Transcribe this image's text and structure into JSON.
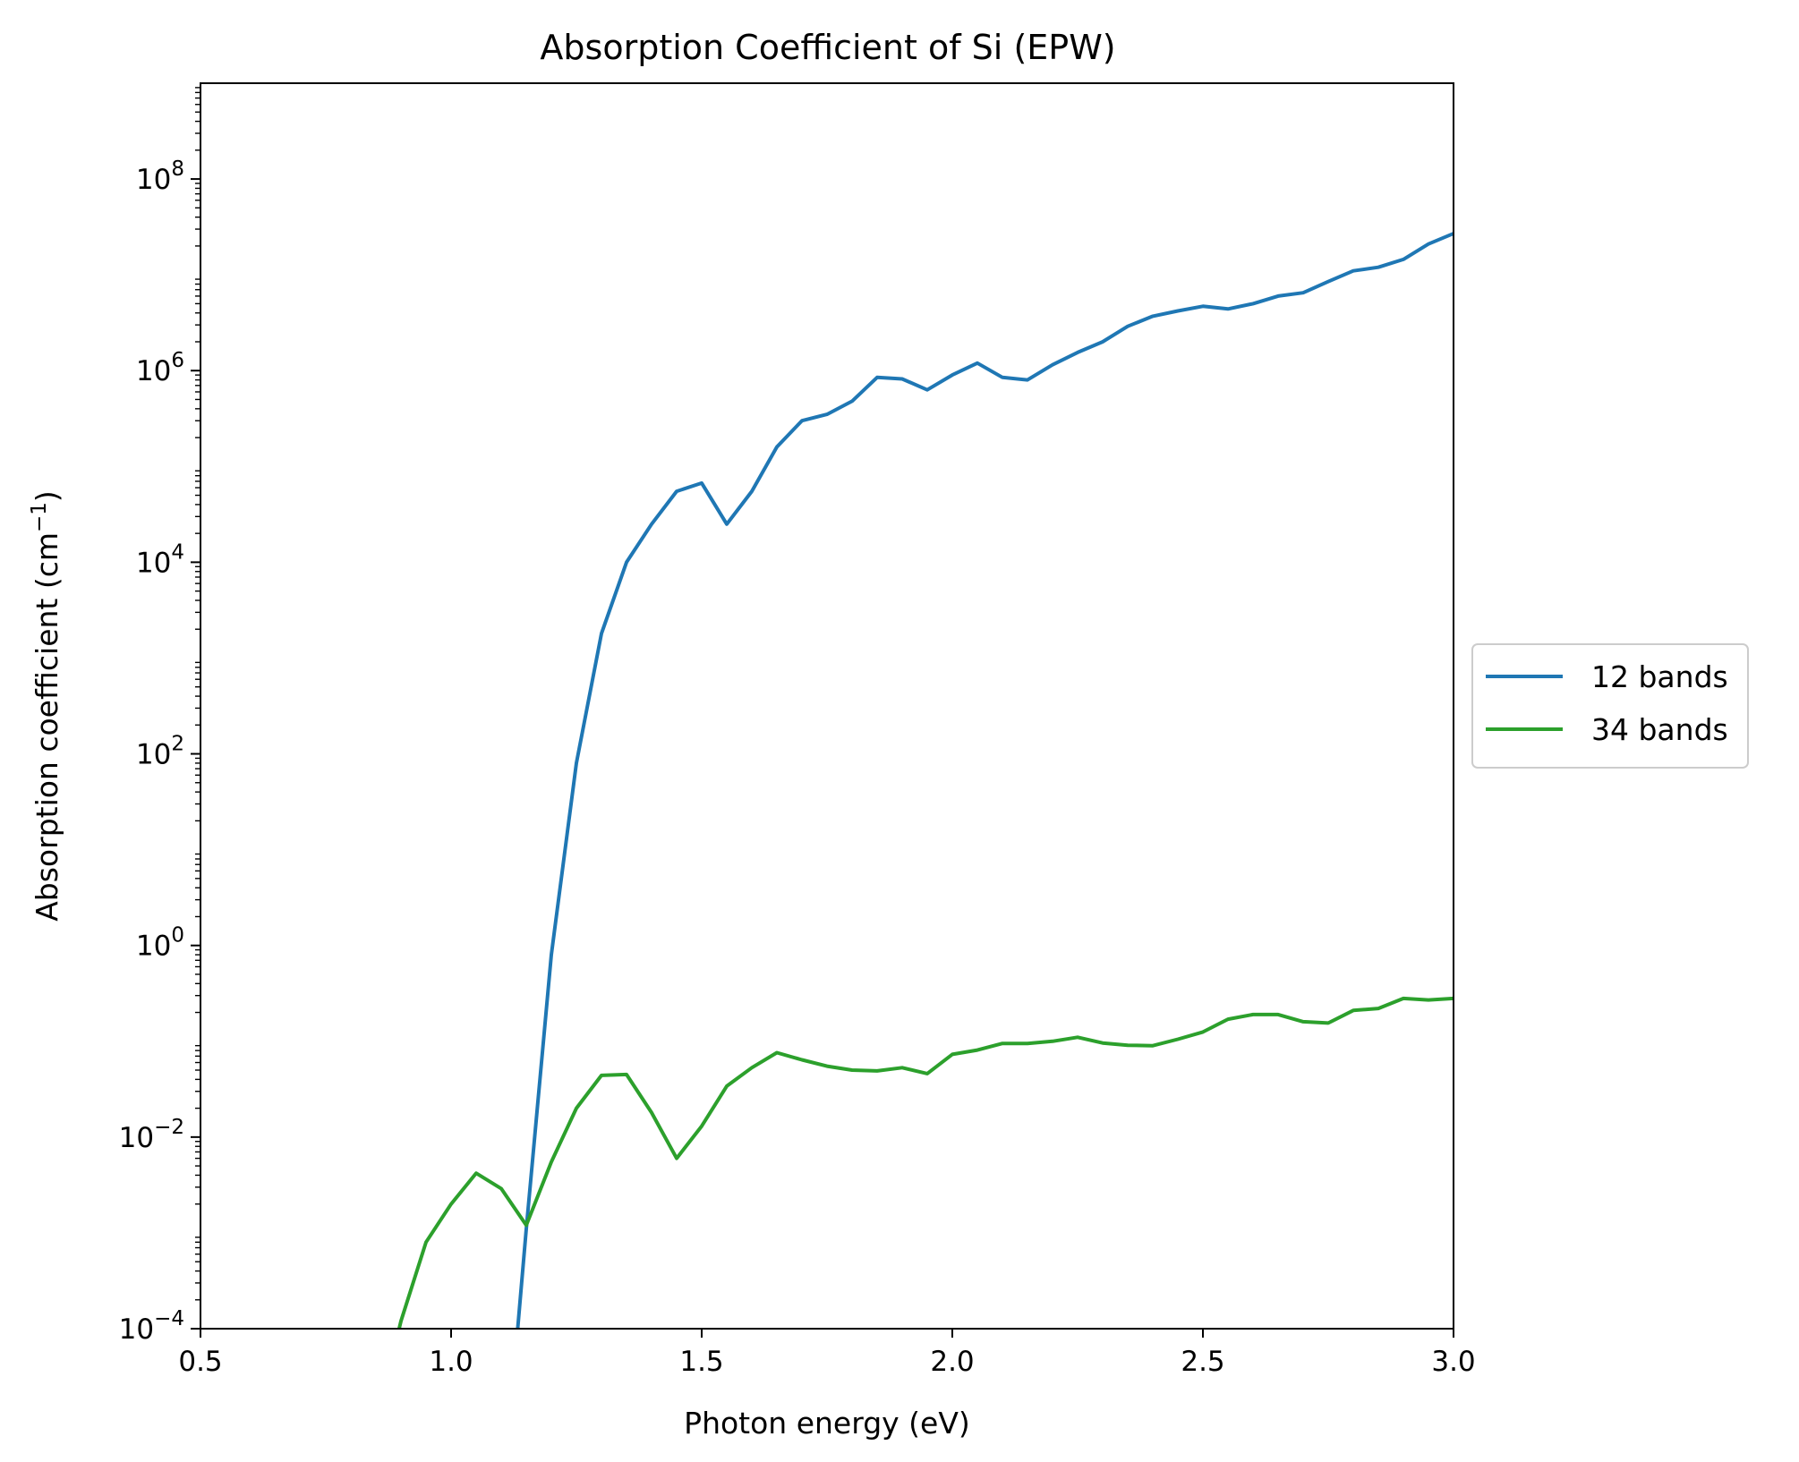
{
  "chart_data": {
    "type": "line",
    "title": "Absorption Coefficient of Si (EPW)",
    "xlabel": "Photon energy (eV)",
    "ylabel_base": "Absorption coefficient (cm",
    "ylabel_sup": "−1",
    "ylabel_tail": ")",
    "xlim": [
      0.5,
      3.0
    ],
    "ylim": [
      0.0001,
      1000000000
    ],
    "yscale": "log",
    "grid": false,
    "legend_position": "center-right-outside",
    "x_ticks": [
      {
        "value": 0.5,
        "label": "0.5"
      },
      {
        "value": 1.0,
        "label": "1.0"
      },
      {
        "value": 1.5,
        "label": "1.5"
      },
      {
        "value": 2.0,
        "label": "2.0"
      },
      {
        "value": 2.5,
        "label": "2.5"
      },
      {
        "value": 3.0,
        "label": "3.0"
      }
    ],
    "y_ticks": [
      {
        "exp": -4,
        "base": "10",
        "sup": "−4"
      },
      {
        "exp": -2,
        "base": "10",
        "sup": "−2"
      },
      {
        "exp": 0,
        "base": "10",
        "sup": "0"
      },
      {
        "exp": 2,
        "base": "10",
        "sup": "2"
      },
      {
        "exp": 4,
        "base": "10",
        "sup": "4"
      },
      {
        "exp": 6,
        "base": "10",
        "sup": "6"
      },
      {
        "exp": 8,
        "base": "10",
        "sup": "8"
      }
    ],
    "series": [
      {
        "name": "12 bands",
        "color": "#1f77b4",
        "x": [
          1.1,
          1.15,
          1.2,
          1.25,
          1.3,
          1.35,
          1.4,
          1.45,
          1.5,
          1.55,
          1.6,
          1.65,
          1.7,
          1.75,
          1.8,
          1.85,
          1.9,
          1.95,
          2.0,
          2.05,
          2.1,
          2.15,
          2.2,
          2.25,
          2.3,
          2.35,
          2.4,
          2.45,
          2.5,
          2.55,
          2.6,
          2.65,
          2.7,
          2.75,
          2.8,
          2.85,
          2.9,
          2.95,
          3.0
        ],
        "y": [
          1e-06,
          0.0011,
          0.8,
          80,
          1800,
          10000,
          25000,
          55000,
          67000,
          25000,
          55000,
          160000,
          300000,
          350000,
          480000,
          850000,
          820000,
          630000,
          900000,
          1200000,
          850000,
          800000,
          1150000,
          1550000,
          2000000,
          2900000,
          3700000,
          4200000,
          4700000,
          4400000,
          5000000,
          6000000,
          6500000,
          8500000,
          11000000,
          12000000,
          14500000,
          21000000,
          27000000
        ]
      },
      {
        "name": "34 bands",
        "color": "#2ca02c",
        "x": [
          0.85,
          0.9,
          0.95,
          1.0,
          1.05,
          1.1,
          1.15,
          1.2,
          1.25,
          1.3,
          1.35,
          1.4,
          1.45,
          1.5,
          1.55,
          1.6,
          1.65,
          1.7,
          1.75,
          1.8,
          1.85,
          1.9,
          1.95,
          2.0,
          2.05,
          2.1,
          2.15,
          2.2,
          2.25,
          2.3,
          2.35,
          2.4,
          2.45,
          2.5,
          2.55,
          2.6,
          2.65,
          2.7,
          2.75,
          2.8,
          2.85,
          2.9,
          2.95,
          3.0
        ],
        "y": [
          1e-05,
          0.00012,
          0.0008,
          0.002,
          0.0042,
          0.0029,
          0.0012,
          0.0055,
          0.02,
          0.044,
          0.045,
          0.018,
          0.006,
          0.013,
          0.034,
          0.053,
          0.076,
          0.064,
          0.055,
          0.05,
          0.049,
          0.053,
          0.046,
          0.073,
          0.081,
          0.095,
          0.095,
          0.1,
          0.11,
          0.096,
          0.091,
          0.09,
          0.105,
          0.125,
          0.17,
          0.19,
          0.19,
          0.16,
          0.155,
          0.21,
          0.22,
          0.28,
          0.27,
          0.28
        ]
      }
    ]
  }
}
